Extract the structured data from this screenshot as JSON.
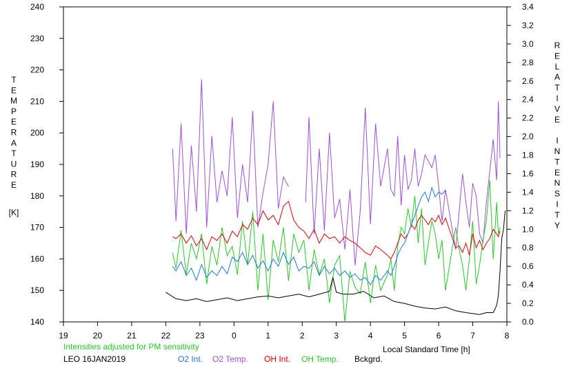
{
  "chart_data": {
    "type": "line",
    "title": "",
    "note": "Intensities adjusted for PM sensitivity",
    "station_date": "LEO 16JAN2019",
    "xlabel": "Local Standard Time [h]",
    "ylabel_left_letters": [
      "T",
      "E",
      "M",
      "P",
      "E",
      "R",
      "A",
      "T",
      "U",
      "R",
      "E"
    ],
    "ylabel_left_unit": "[K]",
    "ylabel_right_letters": [
      "R",
      "E",
      "L",
      "A",
      "T",
      "I",
      "V",
      "E",
      "",
      "I",
      "N",
      "T",
      "E",
      "N",
      "S",
      "I",
      "T",
      "Y"
    ],
    "x_ticks": [
      "19",
      "20",
      "21",
      "22",
      "23",
      "0",
      "1",
      "2",
      "3",
      "4",
      "5",
      "6",
      "7",
      "8"
    ],
    "y_left_ticks": [
      "240",
      "230",
      "220",
      "210",
      "200",
      "190",
      "180",
      "170",
      "160",
      "150",
      "140"
    ],
    "y_right_ticks": [
      "3.4",
      "3.2",
      "3.0",
      "2.8",
      "2.6",
      "2.4",
      "2.2",
      "2.0",
      "1.8",
      "1.6",
      "1.4",
      "1.2",
      "1.0",
      "0.8",
      "0.6",
      "0.4",
      "0.2",
      "0.0"
    ],
    "xlim": [
      19,
      32
    ],
    "ylim_left": [
      140,
      240
    ],
    "ylim_right": [
      0,
      3.4
    ],
    "grid": false,
    "legend": [
      {
        "label": "O2 Int.",
        "color": "#1e78dc"
      },
      {
        "label": "O2 Temp.",
        "color": "#9b4fd8"
      },
      {
        "label": "OH Int.",
        "color": "#dc0000"
      },
      {
        "label": "OH Temp.",
        "color": "#28c828"
      },
      {
        "label": "Bckgrd.",
        "color": "#000000"
      }
    ],
    "series": [
      {
        "name": "O2 Temp.",
        "axis": "left",
        "color": "#9b4fd8",
        "x": [
          22.2,
          22.3,
          22.45,
          22.6,
          22.75,
          22.9,
          23.05,
          23.2,
          23.35,
          23.5,
          23.65,
          23.8,
          23.95,
          24.1,
          24.25,
          24.4,
          24.55,
          24.7,
          24.85,
          25.0,
          25.15,
          25.3,
          25.45,
          25.6,
          26.1,
          26.2,
          26.35,
          26.5,
          26.65,
          26.8,
          26.95,
          27.1,
          27.25,
          27.4,
          27.55,
          27.7,
          27.85,
          28.0,
          28.15,
          28.3,
          28.5,
          28.6,
          28.7,
          28.8,
          28.9,
          29.0,
          29.1,
          29.2,
          29.3,
          29.4,
          29.5,
          29.6,
          29.7,
          29.8,
          29.9,
          30.0,
          30.1,
          30.2,
          30.5,
          30.6,
          30.7,
          30.8,
          30.9,
          31.0,
          31.1,
          31.2,
          31.3,
          31.4,
          31.5,
          31.6,
          31.7,
          31.75,
          31.8
        ],
        "y": [
          195,
          172,
          203,
          168,
          196,
          175,
          217,
          170,
          199,
          178,
          188,
          180,
          205,
          173,
          190,
          178,
          207,
          170,
          181,
          190,
          210,
          176,
          186,
          183,
          178,
          205,
          168,
          195,
          169,
          200,
          173,
          179,
          163,
          182,
          158,
          175,
          208,
          171,
          203,
          183,
          195,
          182,
          180,
          199,
          177,
          193,
          182,
          185,
          195,
          183,
          187,
          193,
          191,
          189,
          193,
          183,
          172,
          182,
          163,
          175,
          187,
          178,
          170,
          184,
          180,
          168,
          165,
          178,
          188,
          198,
          185,
          210,
          192
        ]
      },
      {
        "name": "OH Temp.",
        "axis": "left",
        "color": "#28c828",
        "x": [
          22.2,
          22.3,
          22.45,
          22.6,
          22.75,
          22.9,
          23.05,
          23.2,
          23.35,
          23.5,
          23.65,
          23.8,
          23.95,
          24.1,
          24.25,
          24.4,
          24.55,
          24.7,
          24.85,
          25.0,
          25.15,
          25.3,
          25.45,
          25.6,
          25.75,
          25.9,
          26.05,
          26.2,
          26.35,
          26.5,
          26.65,
          26.8,
          26.95,
          27.1,
          27.25,
          27.4,
          27.55,
          27.7,
          27.85,
          28.0,
          28.15,
          28.3,
          28.5,
          28.6,
          28.7,
          28.8,
          28.9,
          29.0,
          29.1,
          29.2,
          29.3,
          29.4,
          29.5,
          29.6,
          29.7,
          29.8,
          29.9,
          30.0,
          30.1,
          30.2,
          30.5,
          30.6,
          30.7,
          30.8,
          30.9,
          31.0,
          31.1,
          31.2,
          31.3,
          31.4,
          31.5,
          31.6,
          31.7,
          31.75,
          31.8
        ],
        "y": [
          162,
          157,
          169,
          155,
          165,
          160,
          168,
          152,
          164,
          158,
          170,
          161,
          164,
          155,
          172,
          158,
          175,
          150,
          168,
          147,
          166,
          159,
          170,
          153,
          168,
          162,
          166,
          150,
          163,
          155,
          160,
          146,
          158,
          161,
          140,
          156,
          151,
          149,
          159,
          146,
          158,
          150,
          155,
          160,
          150,
          164,
          170,
          168,
          176,
          170,
          180,
          165,
          176,
          158,
          165,
          172,
          168,
          160,
          166,
          150,
          170,
          163,
          158,
          150,
          160,
          172,
          152,
          158,
          166,
          172,
          185,
          160,
          178,
          168,
          170
        ]
      },
      {
        "name": "OH Int.",
        "axis": "right",
        "color": "#dc0000",
        "x": [
          22.2,
          22.3,
          22.45,
          22.6,
          22.75,
          22.9,
          23.05,
          23.2,
          23.35,
          23.5,
          23.65,
          23.8,
          23.95,
          24.1,
          24.25,
          24.4,
          24.55,
          24.7,
          24.85,
          25.0,
          25.15,
          25.3,
          25.45,
          25.6,
          25.75,
          25.9,
          26.05,
          26.2,
          26.35,
          26.5,
          26.65,
          26.8,
          26.95,
          27.1,
          27.25,
          27.4,
          27.55,
          27.7,
          27.85,
          28.0,
          28.15,
          28.3,
          28.5,
          28.6,
          28.7,
          28.8,
          28.9,
          29.0,
          29.1,
          29.2,
          29.3,
          29.4,
          29.5,
          29.6,
          29.7,
          29.8,
          29.9,
          30.0,
          30.1,
          30.2,
          30.5,
          30.6,
          30.7,
          30.8,
          30.9,
          31.0,
          31.1,
          31.2,
          31.3,
          31.4,
          31.5,
          31.6,
          31.7,
          31.75,
          31.8
        ],
        "y": [
          0.92,
          0.9,
          0.95,
          0.85,
          0.93,
          0.82,
          0.9,
          0.78,
          0.92,
          0.88,
          0.95,
          0.85,
          0.98,
          0.92,
          1.05,
          1.0,
          1.12,
          1.05,
          1.2,
          1.1,
          1.15,
          1.05,
          1.25,
          1.3,
          1.1,
          1.02,
          0.98,
          0.9,
          1.0,
          0.85,
          0.95,
          0.9,
          0.92,
          0.85,
          0.92,
          0.88,
          0.85,
          0.8,
          0.75,
          0.72,
          0.82,
          0.78,
          0.72,
          0.68,
          0.75,
          0.85,
          0.95,
          0.9,
          0.95,
          1.05,
          1.0,
          1.1,
          1.15,
          1.1,
          1.05,
          1.12,
          1.08,
          1.15,
          1.05,
          1.12,
          0.8,
          0.82,
          0.75,
          0.85,
          0.72,
          0.95,
          0.8,
          0.88,
          0.78,
          0.85,
          0.9,
          1.0,
          0.95,
          0.92,
          0.98
        ]
      },
      {
        "name": "O2 Int.",
        "axis": "right",
        "color": "#1e78dc",
        "x": [
          22.2,
          22.3,
          22.45,
          22.6,
          22.75,
          22.9,
          23.05,
          23.2,
          23.35,
          23.5,
          23.65,
          23.8,
          23.95,
          24.1,
          24.25,
          24.4,
          24.55,
          24.7,
          24.85,
          25.0,
          25.15,
          25.3,
          25.45,
          25.6,
          25.75,
          25.9,
          26.05,
          26.2,
          26.35,
          26.5,
          26.65,
          26.8,
          26.95,
          27.1,
          27.25,
          27.4,
          27.55,
          27.7,
          27.85,
          28.0,
          28.15,
          28.3,
          28.5,
          28.6,
          28.7,
          28.8,
          28.9,
          29.0,
          29.1,
          29.2,
          29.3,
          29.4,
          29.5,
          29.6,
          29.7,
          29.8,
          29.9,
          30.0,
          30.1,
          30.2
        ],
        "y": [
          0.6,
          0.55,
          0.65,
          0.5,
          0.58,
          0.45,
          0.62,
          0.48,
          0.55,
          0.5,
          0.6,
          0.52,
          0.7,
          0.65,
          0.75,
          0.62,
          0.72,
          0.58,
          0.66,
          0.55,
          0.68,
          0.6,
          0.75,
          0.62,
          0.7,
          0.55,
          0.6,
          0.58,
          0.65,
          0.5,
          0.6,
          0.52,
          0.58,
          0.5,
          0.55,
          0.48,
          0.52,
          0.45,
          0.48,
          0.4,
          0.5,
          0.45,
          0.55,
          0.5,
          0.6,
          0.72,
          0.8,
          0.85,
          0.95,
          1.05,
          1.15,
          1.25,
          1.35,
          1.4,
          1.3,
          1.45,
          1.35,
          1.4,
          1.38,
          1.42
        ]
      },
      {
        "name": "Bckgrd.",
        "axis": "right",
        "color": "#000000",
        "x": [
          22.0,
          22.3,
          22.6,
          22.9,
          23.2,
          23.5,
          23.8,
          24.1,
          24.4,
          24.7,
          25.0,
          25.3,
          25.6,
          25.9,
          26.2,
          26.5,
          26.8,
          26.9,
          27.0,
          27.2,
          27.5,
          27.8,
          28.1,
          28.4,
          28.7,
          29.0,
          29.3,
          29.6,
          29.9,
          30.2,
          30.5,
          30.8,
          31.0,
          31.2,
          31.4,
          31.6,
          31.7,
          31.75,
          31.8,
          31.85,
          31.9,
          31.95
        ],
        "y": [
          0.32,
          0.25,
          0.23,
          0.25,
          0.22,
          0.24,
          0.26,
          0.23,
          0.25,
          0.27,
          0.28,
          0.26,
          0.28,
          0.3,
          0.27,
          0.3,
          0.33,
          0.48,
          0.32,
          0.3,
          0.3,
          0.33,
          0.26,
          0.28,
          0.22,
          0.2,
          0.17,
          0.15,
          0.14,
          0.16,
          0.12,
          0.1,
          0.09,
          0.08,
          0.1,
          0.1,
          0.18,
          0.28,
          0.55,
          0.9,
          1.0,
          1.2
        ]
      }
    ]
  }
}
